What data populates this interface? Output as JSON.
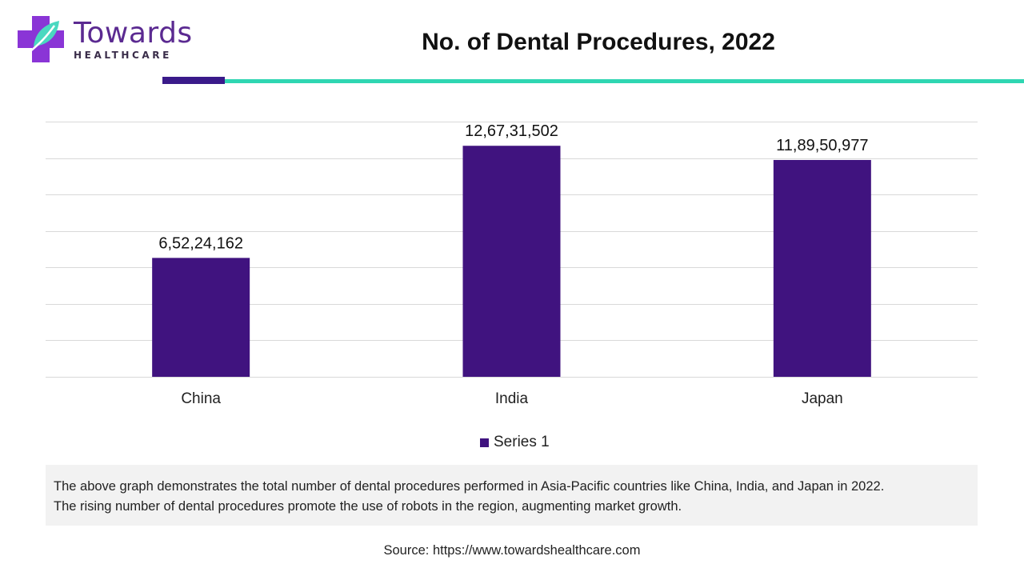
{
  "logo": {
    "name": "Towards",
    "tagline": "HEALTHCARE"
  },
  "colors": {
    "bar": "#40137f",
    "accent_purple": "#3a1a8a",
    "accent_teal": "#2fd6b2",
    "gridline": "#d9d9d9",
    "description_bg": "#f2f2f2"
  },
  "chart_data": {
    "type": "bar",
    "title": "No. of Dental Procedures, 2022",
    "categories": [
      "China",
      "India",
      "Japan"
    ],
    "series": [
      {
        "name": "Series 1",
        "values": [
          65224162,
          126731502,
          118950977
        ],
        "labels": [
          "6,52,24,162",
          "12,67,31,502",
          "11,89,50,977"
        ]
      }
    ],
    "xlabel": "",
    "ylabel": "",
    "ylim": [
      0,
      140000000
    ],
    "y_tick_step": 20000000,
    "grid": true,
    "y_axis_labels_shown": false,
    "legend": "bottom"
  },
  "description": {
    "line1": "The above graph demonstrates the total number of dental procedures performed in Asia-Pacific countries like China, India, and Japan in 2022.",
    "line2": "The rising number of dental procedures promote the use of robots in the region, augmenting market growth."
  },
  "source": "Source: https://www.towardshealthcare.com"
}
